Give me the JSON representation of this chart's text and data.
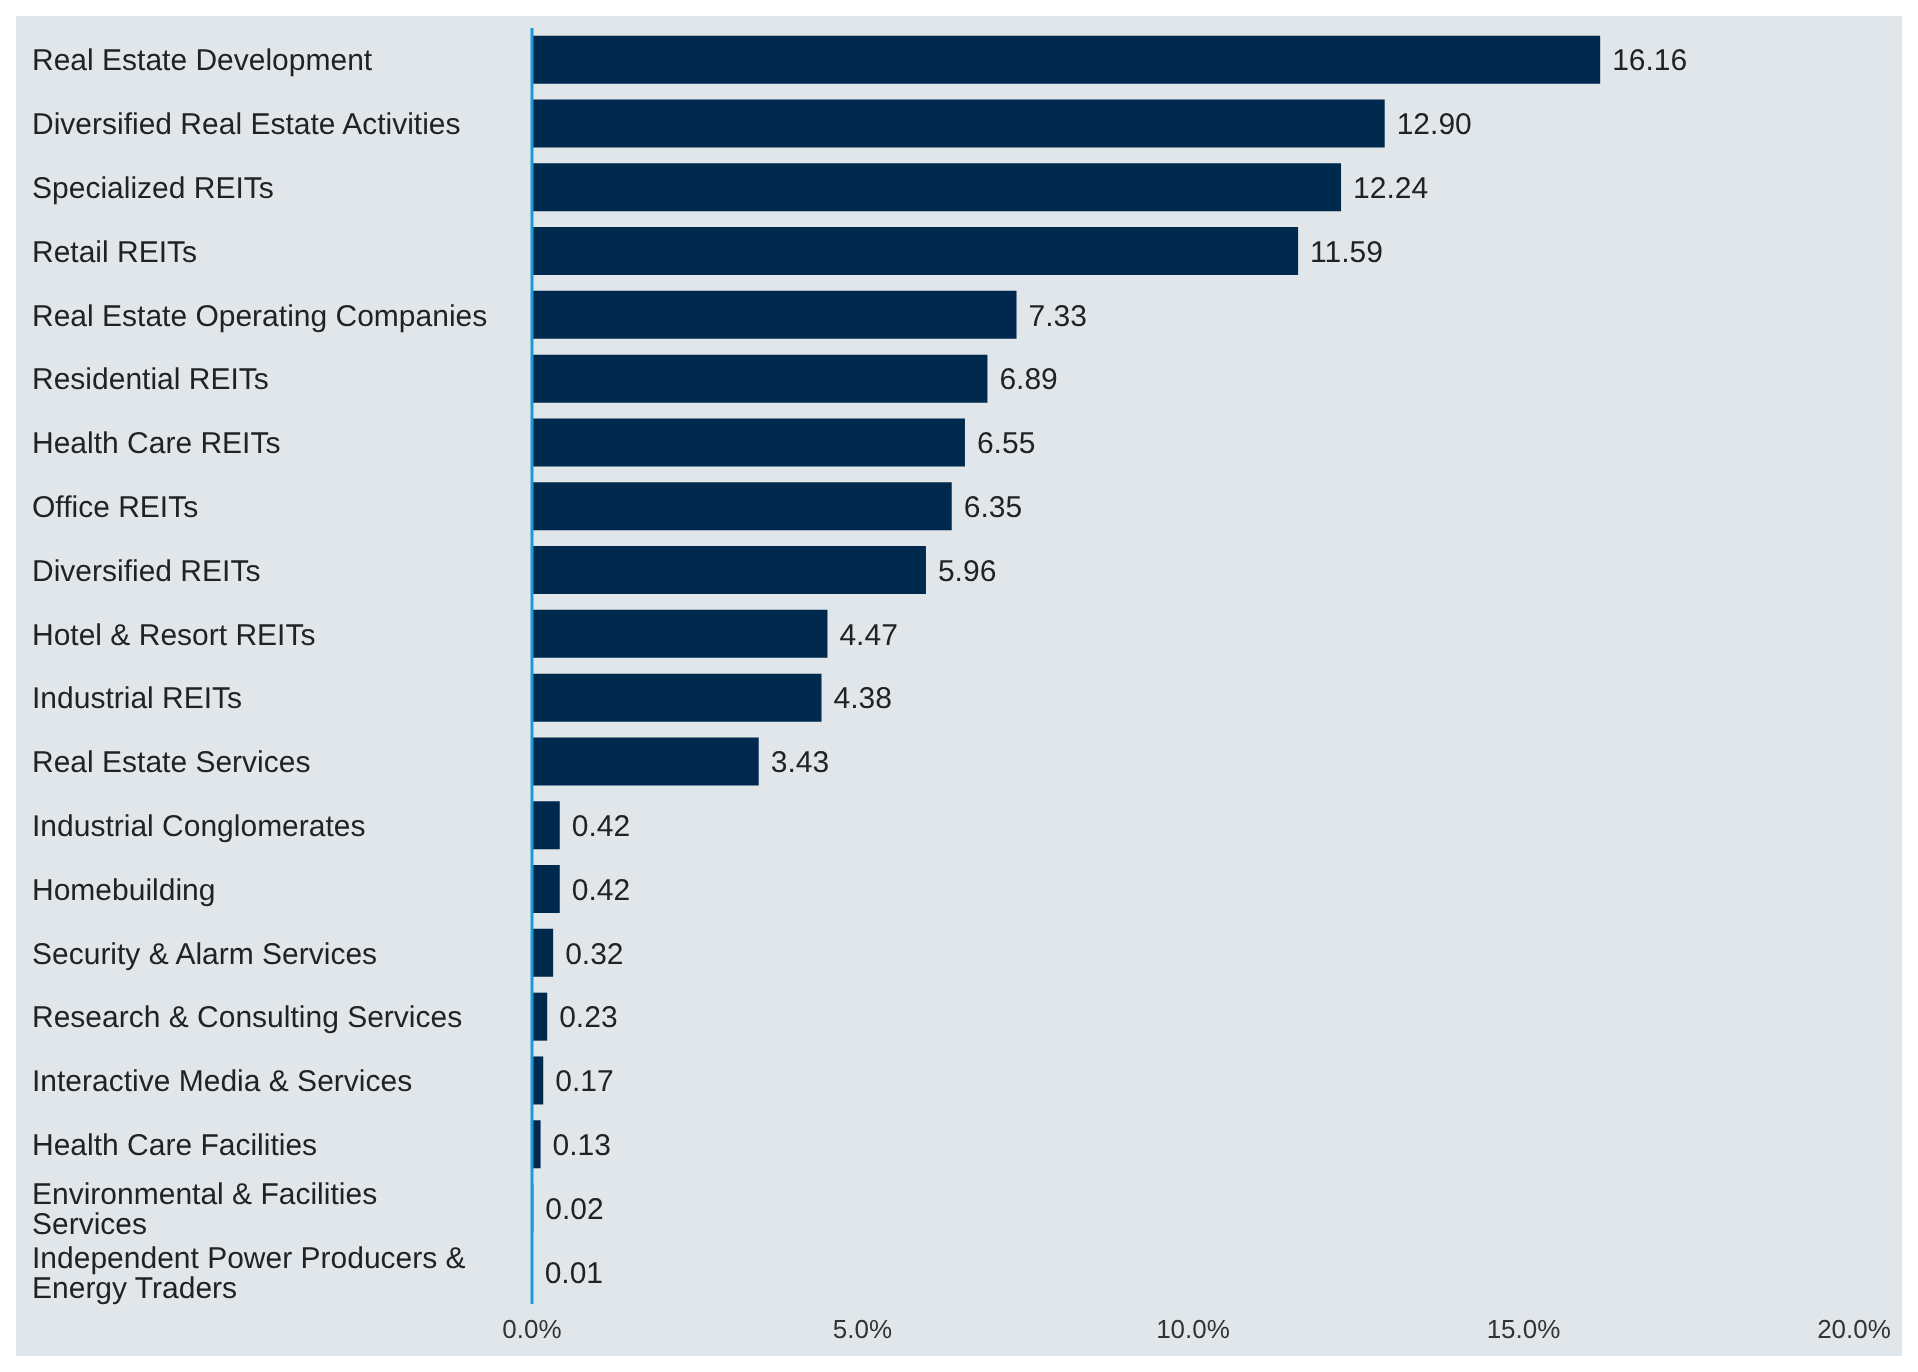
{
  "chart_data": {
    "type": "bar",
    "orientation": "horizontal",
    "categories": [
      "Real Estate Development",
      "Diversified Real Estate Activities",
      "Specialized REITs",
      "Retail REITs",
      "Real Estate Operating Companies",
      "Residential REITs",
      "Health Care REITs",
      "Office REITs",
      "Diversified REITs",
      "Hotel & Resort REITs",
      "Industrial REITs",
      "Real Estate Services",
      "Industrial Conglomerates",
      "Homebuilding",
      "Security & Alarm Services",
      "Research & Consulting Services",
      "Interactive Media & Services",
      "Health Care Facilities",
      "Environmental & Facilities Services",
      "Independent Power Producers & Energy Traders"
    ],
    "values": [
      16.16,
      12.9,
      12.24,
      11.59,
      7.33,
      6.89,
      6.55,
      6.35,
      5.96,
      4.47,
      4.38,
      3.43,
      0.42,
      0.42,
      0.32,
      0.23,
      0.17,
      0.13,
      0.02,
      0.01
    ],
    "value_labels": [
      "16.16",
      "12.90",
      "12.24",
      "11.59",
      "7.33",
      "6.89",
      "6.55",
      "6.35",
      "5.96",
      "4.47",
      "4.38",
      "3.43",
      "0.42",
      "0.42",
      "0.32",
      "0.23",
      "0.17",
      "0.13",
      "0.02",
      "0.01"
    ],
    "color": "#002a4d",
    "xlim": [
      0,
      20
    ],
    "xticks": [
      {
        "value": 0,
        "label": "0.0%"
      },
      {
        "value": 5,
        "label": "5.0%"
      },
      {
        "value": 10,
        "label": "10.0%"
      },
      {
        "value": 15,
        "label": "15.0%"
      },
      {
        "value": 20,
        "label": "20.0%"
      }
    ],
    "grid": false
  }
}
